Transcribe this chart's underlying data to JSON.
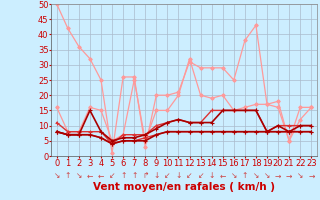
{
  "background_color": "#cceeff",
  "grid_color": "#aabbcc",
  "xlim": [
    -0.5,
    23.5
  ],
  "ylim": [
    0,
    50
  ],
  "yticks": [
    0,
    5,
    10,
    15,
    20,
    25,
    30,
    35,
    40,
    45,
    50
  ],
  "xticks": [
    0,
    1,
    2,
    3,
    4,
    5,
    6,
    7,
    8,
    9,
    10,
    11,
    12,
    13,
    14,
    15,
    16,
    17,
    18,
    19,
    20,
    21,
    22,
    23
  ],
  "series": [
    {
      "x": [
        0,
        1,
        2,
        3,
        4,
        5,
        6,
        7,
        8,
        9,
        10,
        11,
        12,
        13,
        14,
        15,
        16,
        17,
        18,
        19,
        20,
        21,
        22,
        23
      ],
      "y": [
        50,
        42,
        36,
        32,
        25,
        1,
        26,
        26,
        3,
        20,
        20,
        21,
        31,
        29,
        29,
        29,
        25,
        38,
        43,
        17,
        18,
        5,
        12,
        16
      ],
      "color": "#ff9999",
      "lw": 0.9,
      "marker": "D",
      "ms": 1.8,
      "zorder": 2
    },
    {
      "x": [
        0,
        1,
        2,
        3,
        4,
        5,
        6,
        7,
        8,
        9,
        10,
        11,
        12,
        13,
        14,
        15,
        16,
        17,
        18,
        19,
        20,
        21,
        22,
        23
      ],
      "y": [
        16,
        8,
        8,
        16,
        15,
        5,
        7,
        25,
        5,
        15,
        15,
        20,
        32,
        20,
        19,
        20,
        15,
        16,
        17,
        17,
        16,
        5,
        16,
        16
      ],
      "color": "#ff9999",
      "lw": 0.9,
      "marker": "D",
      "ms": 1.8,
      "zorder": 2
    },
    {
      "x": [
        0,
        1,
        2,
        3,
        4,
        5,
        6,
        7,
        8,
        9,
        10,
        11,
        12,
        13,
        14,
        15,
        16,
        17,
        18,
        19,
        20,
        21,
        22,
        23
      ],
      "y": [
        11,
        8,
        8,
        8,
        8,
        4,
        7,
        7,
        7,
        10,
        11,
        12,
        11,
        11,
        15,
        15,
        15,
        15,
        15,
        8,
        10,
        10,
        10,
        10
      ],
      "color": "#dd3333",
      "lw": 1.0,
      "marker": "+",
      "ms": 3.5,
      "zorder": 3
    },
    {
      "x": [
        0,
        1,
        2,
        3,
        4,
        5,
        6,
        7,
        8,
        9,
        10,
        11,
        12,
        13,
        14,
        15,
        16,
        17,
        18,
        19,
        20,
        21,
        22,
        23
      ],
      "y": [
        8,
        7,
        7,
        7,
        6,
        4,
        5,
        5,
        6,
        7,
        8,
        8,
        8,
        8,
        8,
        8,
        8,
        8,
        8,
        8,
        8,
        8,
        8,
        8
      ],
      "color": "#dd3333",
      "lw": 1.0,
      "marker": "+",
      "ms": 3.5,
      "zorder": 3
    },
    {
      "x": [
        0,
        1,
        2,
        3,
        4,
        5,
        6,
        7,
        8,
        9,
        10,
        11,
        12,
        13,
        14,
        15,
        16,
        17,
        18,
        19,
        20,
        21,
        22,
        23
      ],
      "y": [
        8,
        7,
        7,
        15,
        8,
        5,
        6,
        6,
        7,
        9,
        11,
        12,
        11,
        11,
        11,
        15,
        15,
        15,
        15,
        8,
        10,
        8,
        10,
        10
      ],
      "color": "#aa0000",
      "lw": 1.2,
      "marker": "+",
      "ms": 3.5,
      "zorder": 4
    },
    {
      "x": [
        0,
        1,
        2,
        3,
        4,
        5,
        6,
        7,
        8,
        9,
        10,
        11,
        12,
        13,
        14,
        15,
        16,
        17,
        18,
        19,
        20,
        21,
        22,
        23
      ],
      "y": [
        8,
        7,
        7,
        7,
        6,
        4,
        5,
        5,
        5,
        7,
        8,
        8,
        8,
        8,
        8,
        8,
        8,
        8,
        8,
        8,
        8,
        8,
        8,
        8
      ],
      "color": "#aa0000",
      "lw": 1.2,
      "marker": "+",
      "ms": 3.5,
      "zorder": 4
    }
  ],
  "arrow_symbols": [
    "↘",
    "↑",
    "↘",
    "←",
    "←",
    "↙",
    "↑",
    "↑",
    "↱",
    "↓",
    "↙",
    "↓",
    "↙",
    "↙",
    "↓",
    "←",
    "↘",
    "↑",
    "↘",
    "↘",
    "→",
    "→",
    "↘",
    "→"
  ],
  "xlabel": "Vent moyen/en rafales ( km/h )",
  "xlabel_color": "#cc0000",
  "xlabel_fontsize": 7.5,
  "tick_fontsize": 6,
  "arrow_fontsize": 5.5
}
